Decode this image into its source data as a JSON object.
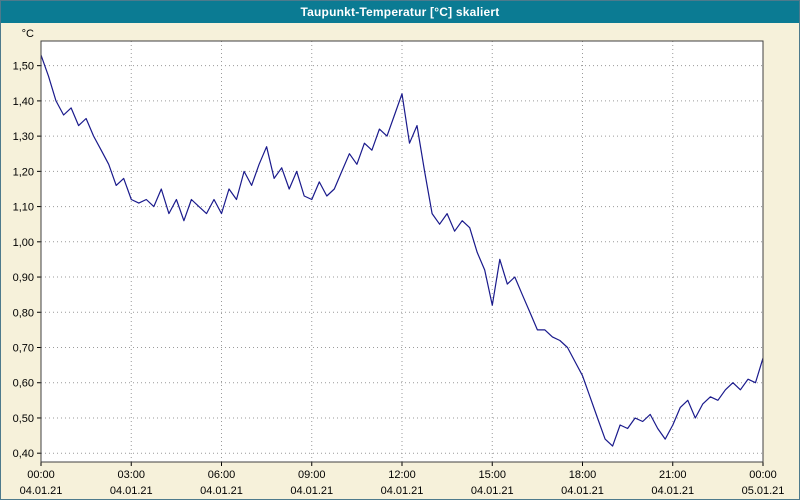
{
  "window": {
    "title": "Taupunkt-Temperatur [°C] skaliert",
    "title_bar_color": "#0b7b93",
    "title_text_color": "#ffffff"
  },
  "axes": {
    "unit_label": "°C",
    "background_color": "#f6f1da",
    "plot_background": "#ffffff",
    "border_color": "#404040",
    "grid_color": "#9a9a9a",
    "line_color": "#1a1a8c",
    "ylim": [
      0.375,
      1.57
    ],
    "xlim_hours": [
      0,
      24
    ],
    "grid": true,
    "y_ticks": [
      {
        "value": 1.5,
        "label": "1,50"
      },
      {
        "value": 1.4,
        "label": "1,40"
      },
      {
        "value": 1.3,
        "label": "1,30"
      },
      {
        "value": 1.2,
        "label": "1,20"
      },
      {
        "value": 1.1,
        "label": "1,10"
      },
      {
        "value": 1.0,
        "label": "1,00"
      },
      {
        "value": 0.9,
        "label": "0,90"
      },
      {
        "value": 0.8,
        "label": "0,80"
      },
      {
        "value": 0.7,
        "label": "0,70"
      },
      {
        "value": 0.6,
        "label": "0,60"
      },
      {
        "value": 0.5,
        "label": "0,50"
      },
      {
        "value": 0.4,
        "label": "0,40"
      }
    ],
    "x_ticks": [
      {
        "hour": 0,
        "time": "00:00",
        "date": "04.01.21"
      },
      {
        "hour": 3,
        "time": "03:00",
        "date": "04.01.21"
      },
      {
        "hour": 6,
        "time": "06:00",
        "date": "04.01.21"
      },
      {
        "hour": 9,
        "time": "09:00",
        "date": "04.01.21"
      },
      {
        "hour": 12,
        "time": "12:00",
        "date": "04.01.21"
      },
      {
        "hour": 15,
        "time": "15:00",
        "date": "04.01.21"
      },
      {
        "hour": 18,
        "time": "18:00",
        "date": "04.01.21"
      },
      {
        "hour": 21,
        "time": "21:00",
        "date": "04.01.21"
      },
      {
        "hour": 24,
        "time": "00:00",
        "date": "05.01.21"
      }
    ]
  },
  "chart_data": {
    "type": "line",
    "title": "Taupunkt-Temperatur [°C] skaliert",
    "xlabel": "",
    "ylabel": "°C",
    "series_name": "Taupunkt-Temperatur",
    "x_unit": "hours since 04.01.21 00:00",
    "x_start_hour": 0,
    "x_step_hours": 0.25,
    "ylim": [
      0.375,
      1.57
    ],
    "values": [
      1.53,
      1.47,
      1.4,
      1.36,
      1.38,
      1.33,
      1.35,
      1.3,
      1.26,
      1.22,
      1.16,
      1.18,
      1.12,
      1.11,
      1.12,
      1.1,
      1.15,
      1.08,
      1.12,
      1.06,
      1.12,
      1.1,
      1.08,
      1.12,
      1.08,
      1.15,
      1.12,
      1.2,
      1.16,
      1.22,
      1.27,
      1.18,
      1.21,
      1.15,
      1.2,
      1.13,
      1.12,
      1.17,
      1.13,
      1.15,
      1.2,
      1.25,
      1.22,
      1.28,
      1.26,
      1.32,
      1.3,
      1.36,
      1.42,
      1.28,
      1.33,
      1.2,
      1.08,
      1.05,
      1.08,
      1.03,
      1.06,
      1.04,
      0.97,
      0.92,
      0.82,
      0.95,
      0.88,
      0.9,
      0.85,
      0.8,
      0.75,
      0.75,
      0.73,
      0.72,
      0.7,
      0.66,
      0.62,
      0.56,
      0.5,
      0.44,
      0.42,
      0.48,
      0.47,
      0.5,
      0.49,
      0.51,
      0.47,
      0.44,
      0.48,
      0.53,
      0.55,
      0.5,
      0.54,
      0.56,
      0.55,
      0.58,
      0.6,
      0.58,
      0.61,
      0.6,
      0.67
    ]
  }
}
